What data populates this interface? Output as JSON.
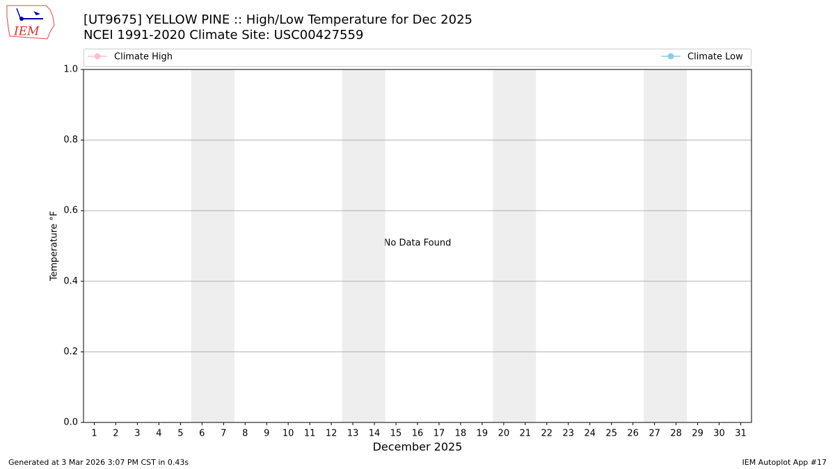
{
  "chart_data": {
    "type": "line",
    "title": "[UT9675] YELLOW PINE :: High/Low Temperature for Dec 2025",
    "subtitle": "NCEI 1991-2020 Climate Site: USC00427559",
    "logo_text": "IEM",
    "xlabel": "December 2025",
    "ylabel": "Temperature °F",
    "annotation": "No Data Found",
    "x": [
      1,
      2,
      3,
      4,
      5,
      6,
      7,
      8,
      9,
      10,
      11,
      12,
      13,
      14,
      15,
      16,
      17,
      18,
      19,
      20,
      21,
      22,
      23,
      24,
      25,
      26,
      27,
      28,
      29,
      30,
      31
    ],
    "series": [
      {
        "name": "Climate High",
        "color": "#ffc0cb",
        "values": [
          null,
          null,
          null,
          null,
          null,
          null,
          null,
          null,
          null,
          null,
          null,
          null,
          null,
          null,
          null,
          null,
          null,
          null,
          null,
          null,
          null,
          null,
          null,
          null,
          null,
          null,
          null,
          null,
          null,
          null,
          null
        ]
      },
      {
        "name": "Climate Low",
        "color": "#87ceeb",
        "values": [
          null,
          null,
          null,
          null,
          null,
          null,
          null,
          null,
          null,
          null,
          null,
          null,
          null,
          null,
          null,
          null,
          null,
          null,
          null,
          null,
          null,
          null,
          null,
          null,
          null,
          null,
          null,
          null,
          null,
          null,
          null
        ]
      }
    ],
    "xlim": [
      0.5,
      31.5
    ],
    "xticks": [
      1,
      2,
      3,
      4,
      5,
      6,
      7,
      8,
      9,
      10,
      11,
      12,
      13,
      14,
      15,
      16,
      17,
      18,
      19,
      20,
      21,
      22,
      23,
      24,
      25,
      26,
      27,
      28,
      29,
      30,
      31
    ],
    "ylim": [
      0,
      1
    ],
    "yticks": [
      {
        "value": 0,
        "label": "0.0"
      },
      0.2,
      0.4,
      0.6,
      0.8,
      {
        "value": 1,
        "label": "1.0"
      }
    ],
    "grid": true,
    "shaded_xranges": [
      [
        5.5,
        7.5
      ],
      [
        12.5,
        14.5
      ],
      [
        19.5,
        21.5
      ],
      [
        26.5,
        28.5
      ]
    ],
    "footer_left": "Generated at 3 Mar 2026 3:07 PM CST in 0.43s",
    "footer_right": "IEM Autoplot App #17"
  }
}
